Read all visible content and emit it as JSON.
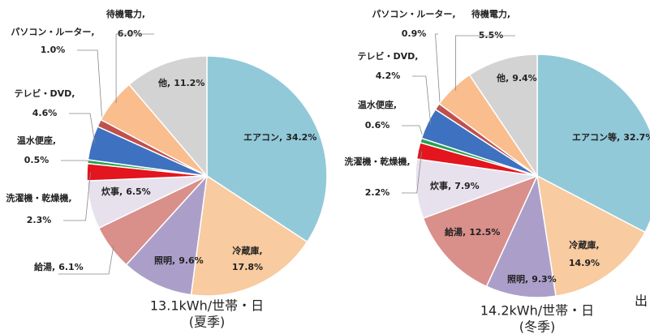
{
  "chart_data": [
    {
      "type": "pie",
      "title": "13.1kWh/世帯・日",
      "subtitle": "(夏季)",
      "categories": [
        "エアコン,",
        "冷蔵庫,",
        "照明,",
        "給湯,",
        "炊事,",
        "洗濯機・乾燥機,",
        "温水便座,",
        "テレビ・DVD,",
        "パソコン・ルーター,",
        "待機電力,",
        "他,"
      ],
      "values": [
        34.2,
        17.8,
        9.6,
        6.1,
        6.5,
        2.3,
        0.5,
        4.6,
        1.0,
        6.0,
        11.2
      ],
      "value_labels": [
        "34.2%",
        "17.8%",
        "9.6%",
        "6.1%",
        "6.5%",
        "2.3%",
        "0.5%",
        "4.6%",
        "1.0%",
        "6.0%",
        "11.2%"
      ],
      "colors": [
        "#92c9d9",
        "#f8cba0",
        "#ab9fca",
        "#d98f8a",
        "#e7e1ee",
        "#e3151e",
        "#21a24b",
        "#3e71c0",
        "#c0504d",
        "#f9bd8e",
        "#d3d3d3"
      ]
    },
    {
      "type": "pie",
      "title": "14.2kWh/世帯・日",
      "subtitle": "(冬季)",
      "categories": [
        "エアコン等,",
        "冷蔵庫,",
        "照明,",
        "給湯,",
        "炊事,",
        "洗濯機・乾燥機,",
        "温水便座,",
        "テレビ・DVD,",
        "パソコン・ルーター,",
        "待機電力,",
        "他,"
      ],
      "values": [
        32.7,
        14.9,
        9.3,
        12.5,
        7.9,
        2.2,
        0.6,
        4.2,
        0.9,
        5.5,
        9.4
      ],
      "value_labels": [
        "32.7%",
        "14.9%",
        "9.3%",
        "12.5%",
        "7.9%",
        "2.2%",
        "0.6%",
        "4.2%",
        "0.9%",
        "5.5%",
        "9.4%"
      ],
      "colors": [
        "#92c9d9",
        "#f8cba0",
        "#ab9fca",
        "#d98f8a",
        "#e7e1ee",
        "#e3151e",
        "#21a24b",
        "#3e71c0",
        "#c0504d",
        "#f9bd8e",
        "#d3d3d3"
      ]
    }
  ],
  "note": "出"
}
